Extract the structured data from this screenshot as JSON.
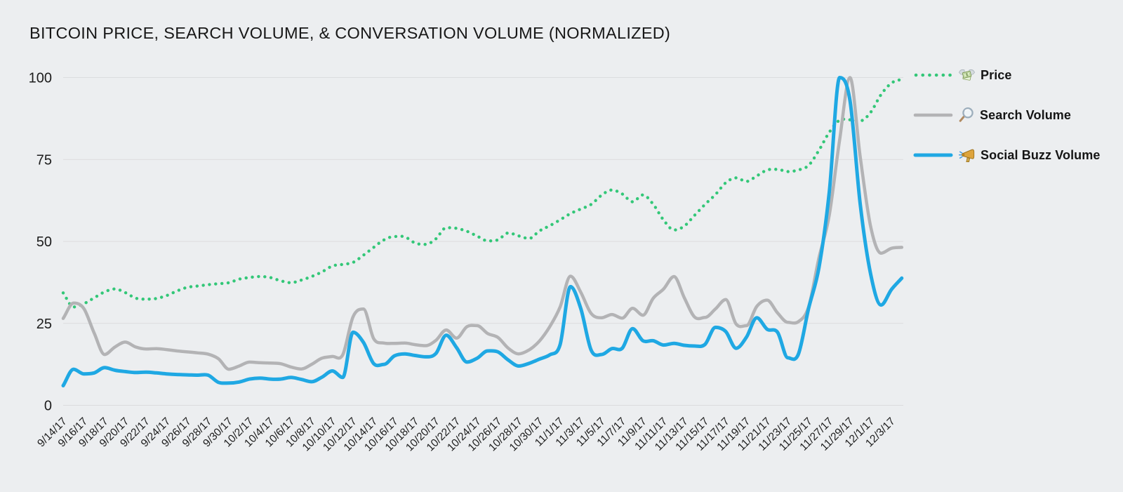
{
  "title": "BITCOIN PRICE, SEARCH VOLUME, & CONVERSATION VOLUME (NORMALIZED)",
  "background": "#eceef0",
  "grid_color": "#dbdcde",
  "text_color": "#1c1c1c",
  "legend": {
    "items": [
      {
        "label": "Price",
        "icon": "money-with-wings-icon",
        "style": "dotted"
      },
      {
        "label": "Search Volume",
        "icon": "magnifying-glass-icon",
        "style": "solid"
      },
      {
        "label": "Social Buzz Volume",
        "icon": "megaphone-icon",
        "style": "solid"
      }
    ]
  },
  "chart_data": {
    "type": "line",
    "title": "BITCOIN PRICE, SEARCH VOLUME, & CONVERSATION VOLUME (NORMALIZED)",
    "xlabel": "",
    "ylabel": "",
    "ylim": [
      0,
      100
    ],
    "yticks": [
      0,
      25,
      50,
      75,
      100
    ],
    "grid": "horizontal",
    "legend_position": "right",
    "xtick_every": 2,
    "x": [
      "9/14/17",
      "9/15/17",
      "9/16/17",
      "9/17/17",
      "9/18/17",
      "9/19/17",
      "9/20/17",
      "9/21/17",
      "9/22/17",
      "9/23/17",
      "9/24/17",
      "9/25/17",
      "9/26/17",
      "9/27/17",
      "9/28/17",
      "9/29/17",
      "9/30/17",
      "10/1/17",
      "10/2/17",
      "10/3/17",
      "10/4/17",
      "10/5/17",
      "10/6/17",
      "10/7/17",
      "10/8/17",
      "10/9/17",
      "10/10/17",
      "10/11/17",
      "10/12/17",
      "10/13/17",
      "10/14/17",
      "10/15/17",
      "10/16/17",
      "10/17/17",
      "10/18/17",
      "10/19/17",
      "10/20/17",
      "10/21/17",
      "10/22/17",
      "10/23/17",
      "10/24/17",
      "10/25/17",
      "10/26/17",
      "10/27/17",
      "10/28/17",
      "10/29/17",
      "10/30/17",
      "10/31/17",
      "11/1/17",
      "11/2/17",
      "11/3/17",
      "11/4/17",
      "11/5/17",
      "11/6/17",
      "11/7/17",
      "11/8/17",
      "11/9/17",
      "11/10/17",
      "11/11/17",
      "11/12/17",
      "11/13/17",
      "11/14/17",
      "11/15/17",
      "11/16/17",
      "11/17/17",
      "11/18/17",
      "11/19/17",
      "11/20/17",
      "11/21/17",
      "11/22/17",
      "11/23/17",
      "11/24/17",
      "11/25/17",
      "11/26/17",
      "11/27/17",
      "11/28/17",
      "11/29/17",
      "11/30/17",
      "12/1/17",
      "12/2/17",
      "12/3/17",
      "12/4/17"
    ],
    "series": [
      {
        "name": "Price",
        "color": "#33c778",
        "line_style": "dotted",
        "values": [
          34.3,
          30.0,
          31.0,
          32.8,
          34.6,
          35.5,
          34.4,
          32.7,
          32.4,
          32.6,
          33.5,
          34.9,
          36.0,
          36.4,
          36.8,
          37.1,
          37.4,
          38.5,
          39.0,
          39.3,
          39.0,
          38.0,
          37.4,
          38.2,
          39.3,
          40.7,
          42.5,
          43.0,
          43.6,
          45.8,
          48.2,
          50.5,
          51.5,
          51.4,
          49.5,
          49.1,
          50.8,
          54.2,
          54.0,
          53.1,
          51.6,
          50.2,
          50.5,
          52.6,
          51.7,
          50.9,
          53.2,
          54.8,
          56.6,
          58.5,
          59.9,
          61.3,
          64.1,
          65.7,
          64.5,
          62.1,
          64.2,
          61.3,
          56.5,
          53.5,
          54.7,
          58.0,
          61.3,
          64.3,
          67.9,
          69.4,
          68.3,
          70.0,
          71.8,
          72.0,
          71.3,
          71.8,
          73.2,
          77.8,
          83.3,
          87.0,
          87.1,
          86.8,
          89.4,
          94.8,
          98.3,
          99.5
        ]
      },
      {
        "name": "Search Volume",
        "color": "#b3b3b5",
        "line_style": "solid",
        "values": [
          26.5,
          31.2,
          29.5,
          22.0,
          15.5,
          17.8,
          19.3,
          17.8,
          17.2,
          17.3,
          17.0,
          16.6,
          16.3,
          16.0,
          15.6,
          14.2,
          11.0,
          12.0,
          13.2,
          13.0,
          12.9,
          12.7,
          11.7,
          11.1,
          12.5,
          14.4,
          14.9,
          15.4,
          27.0,
          29.4,
          20.3,
          19.0,
          18.9,
          19.0,
          18.5,
          18.2,
          19.8,
          23.0,
          20.5,
          24.0,
          24.3,
          21.9,
          20.7,
          17.4,
          15.7,
          16.9,
          19.6,
          24.0,
          30.0,
          39.4,
          34.5,
          28.0,
          26.7,
          27.7,
          26.6,
          29.6,
          27.5,
          32.7,
          35.5,
          39.3,
          32.8,
          26.9,
          26.8,
          29.4,
          32.3,
          24.8,
          24.3,
          30.2,
          32.1,
          28.2,
          25.3,
          25.5,
          30.0,
          45.0,
          58.0,
          81.0,
          100.0,
          75.5,
          54.5,
          46.4,
          47.9,
          48.2
        ]
      },
      {
        "name": "Social Buzz Volume",
        "color": "#1fa8e3",
        "line_style": "solid",
        "values": [
          6.0,
          11.0,
          9.6,
          9.9,
          11.5,
          10.7,
          10.3,
          10.0,
          10.1,
          9.9,
          9.6,
          9.4,
          9.3,
          9.2,
          9.2,
          7.0,
          6.8,
          7.1,
          8.0,
          8.3,
          8.0,
          8.0,
          8.5,
          7.9,
          7.2,
          8.6,
          10.5,
          8.5,
          22.3,
          19.2,
          12.7,
          12.5,
          15.1,
          15.7,
          15.2,
          14.8,
          15.8,
          21.4,
          17.6,
          13.2,
          14.4,
          16.6,
          16.3,
          13.8,
          12.0,
          12.8,
          14.1,
          15.4,
          18.5,
          36.2,
          29.5,
          16.8,
          15.5,
          17.3,
          17.4,
          23.4,
          19.7,
          19.7,
          18.4,
          18.9,
          18.3,
          18.1,
          18.6,
          23.8,
          22.5,
          17.4,
          20.8,
          26.7,
          23.2,
          22.3,
          14.5,
          15.5,
          29.5,
          42.0,
          65.0,
          100.0,
          93.0,
          61.0,
          40.0,
          30.6,
          35.3,
          38.8
        ]
      }
    ]
  }
}
